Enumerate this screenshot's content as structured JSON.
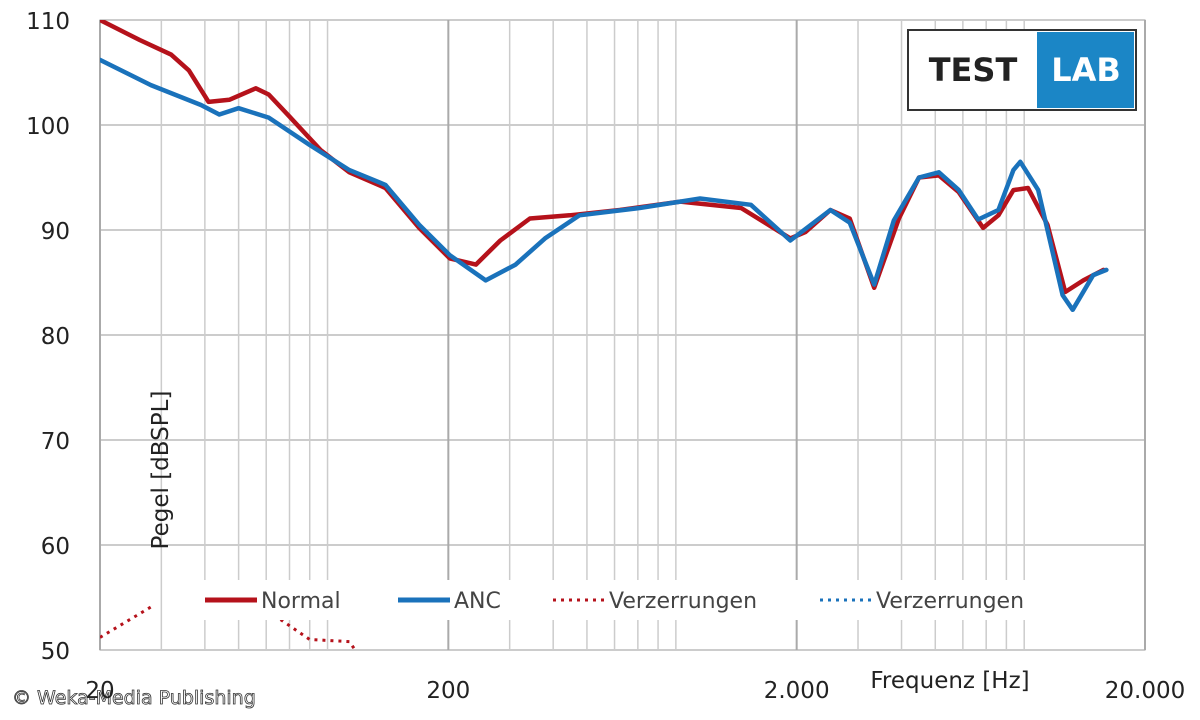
{
  "chart_data": {
    "type": "line",
    "xscale": "log",
    "xlabel": "Frequenz [Hz]",
    "ylabel": "Pegel [dBSPL]",
    "xlim": [
      20,
      20000
    ],
    "ylim": [
      50,
      110
    ],
    "xticks": [
      20,
      200,
      {
        "value": 2000,
        "label": "2.000"
      },
      {
        "value": 20000,
        "label": "20.000"
      }
    ],
    "xminor": [
      30,
      40,
      50,
      60,
      70,
      80,
      90,
      300,
      400,
      500,
      600,
      700,
      800,
      900,
      3000,
      4000,
      5000,
      6000,
      7000,
      8000,
      9000
    ],
    "yticks": [
      50,
      60,
      70,
      80,
      90,
      100,
      110
    ],
    "grid": true,
    "legend": "bottom",
    "logo": [
      "TEST",
      "LAB"
    ],
    "watermark": "© Weka-Media Publishing",
    "series": [
      {
        "name": "Normal",
        "color": "#b5121b",
        "style": "solid",
        "x": [
          20,
          26,
          32,
          36,
          41,
          47,
          56,
          61,
          70,
          86,
          104,
          132,
          165,
          202,
          240,
          282,
          343,
          446,
          621,
          928,
          1385,
          1918,
          2119,
          2500,
          2840,
          3340,
          3930,
          4490,
          5120,
          5840,
          6860,
          7590,
          8380,
          9230,
          10500,
          11800,
          13300,
          15200
        ],
        "values": [
          110,
          108.1,
          106.7,
          105.2,
          102.2,
          102.4,
          103.5,
          102.9,
          100.8,
          97.6,
          95.5,
          94.0,
          90.2,
          87.3,
          86.7,
          89.0,
          91.1,
          91.4,
          91.9,
          92.7,
          92.1,
          89.2,
          89.8,
          91.9,
          91.1,
          84.5,
          91.1,
          95.0,
          95.2,
          93.6,
          90.2,
          91.4,
          93.8,
          94.0,
          90.5,
          84.1,
          85.2,
          86.2
        ]
      },
      {
        "name": "ANC",
        "color": "#1a72bb",
        "style": "solid",
        "x": [
          20,
          28,
          39,
          44,
          50,
          61,
          80,
          104,
          132,
          165,
          202,
          256,
          312,
          379,
          476,
          708,
          1056,
          1478,
          1918,
          2500,
          2840,
          3340,
          3800,
          4490,
          5120,
          5840,
          6640,
          7590,
          8380,
          8770,
          9870,
          11600,
          12400,
          14200,
          15500
        ],
        "values": [
          106.2,
          103.8,
          101.9,
          101.0,
          101.6,
          100.7,
          98.1,
          95.7,
          94.3,
          90.5,
          87.6,
          85.2,
          86.7,
          89.2,
          91.4,
          92.1,
          93.0,
          92.4,
          89.0,
          91.9,
          90.7,
          84.8,
          90.9,
          95.0,
          95.5,
          93.8,
          91.0,
          91.9,
          95.7,
          96.5,
          93.8,
          83.8,
          82.4,
          85.7,
          86.2
        ]
      },
      {
        "name": "Verzerrungen",
        "color": "#b5121b",
        "style": "dotted",
        "x": [
          20,
          28,
          null,
          66,
          80,
          104,
          108
        ],
        "values": [
          51.2,
          54.1,
          null,
          52.9,
          51,
          50.8,
          50
        ]
      },
      {
        "name": "Verzerrungen",
        "color": "#1a72bb",
        "style": "dotted",
        "x": [],
        "values": []
      }
    ]
  }
}
